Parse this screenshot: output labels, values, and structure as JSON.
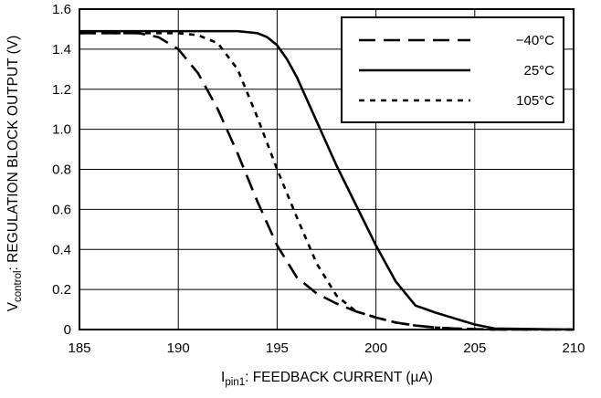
{
  "chart_data": {
    "type": "line",
    "title": "",
    "xlabel_parts": {
      "main": "I",
      "sub": "pin1",
      "rest": ": FEEDBACK CURRENT (µA)"
    },
    "ylabel_parts": {
      "main": "V",
      "sub": "control",
      "rest": ": REGULATION BLOCK OUTPUT (V)"
    },
    "xlim": [
      185,
      210
    ],
    "ylim": [
      0,
      1.6
    ],
    "xticks": [
      185,
      190,
      195,
      200,
      205,
      210
    ],
    "yticks": [
      0,
      0.2,
      0.4,
      0.6,
      0.8,
      1.0,
      1.2,
      1.4,
      1.6
    ],
    "ytick_labels": [
      "0",
      "0.2",
      "0.4",
      "0.6",
      "0.8",
      "1.0",
      "1.2",
      "1.4",
      "1.6"
    ],
    "grid": true,
    "legend_position": "top-right",
    "series": [
      {
        "name": "−40°C",
        "style": "dashed",
        "x": [
          185,
          188,
          189,
          190,
          191,
          192,
          193,
          194,
          195,
          196,
          197,
          198,
          199,
          200,
          201,
          202,
          203,
          204,
          205,
          206,
          210
        ],
        "y": [
          1.48,
          1.48,
          1.46,
          1.4,
          1.28,
          1.1,
          0.88,
          0.64,
          0.42,
          0.26,
          0.18,
          0.13,
          0.09,
          0.06,
          0.035,
          0.02,
          0.01,
          0.005,
          0.002,
          0,
          0
        ]
      },
      {
        "name": "25°C",
        "style": "solid",
        "x": [
          185,
          190,
          193,
          194,
          194.5,
          195,
          195.5,
          196,
          197,
          198,
          199,
          200,
          201,
          202,
          203,
          204,
          205,
          206,
          210
        ],
        "y": [
          1.49,
          1.49,
          1.49,
          1.48,
          1.46,
          1.42,
          1.35,
          1.26,
          1.04,
          0.82,
          0.62,
          0.42,
          0.24,
          0.12,
          0.085,
          0.055,
          0.025,
          0.005,
          0
        ]
      },
      {
        "name": "105°C",
        "style": "dotted",
        "x": [
          185,
          190,
          191,
          192,
          193,
          194,
          195,
          196,
          197,
          198,
          199,
          200,
          201,
          202,
          203,
          204,
          205,
          206,
          210
        ],
        "y": [
          1.48,
          1.48,
          1.47,
          1.43,
          1.3,
          1.06,
          0.8,
          0.56,
          0.33,
          0.17,
          0.09,
          0.06,
          0.035,
          0.02,
          0.01,
          0.005,
          0.002,
          0,
          0
        ]
      }
    ]
  }
}
